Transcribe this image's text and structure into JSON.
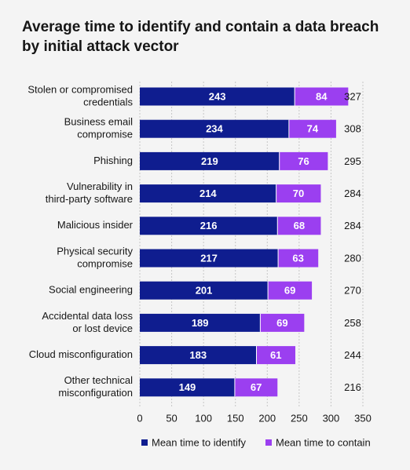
{
  "title": "Average time to identify and contain a data breach by initial attack vector",
  "colors": {
    "identify": "#0f1d8f",
    "contain": "#9b3ff0",
    "background": "#f4f4f4",
    "grid": "#c6c6c6"
  },
  "chart_data": {
    "type": "bar",
    "orientation": "horizontal",
    "stacked": true,
    "categories": [
      [
        "Stolen or compromised",
        "credentials"
      ],
      [
        "Business email",
        "compromise"
      ],
      [
        "Phishing"
      ],
      [
        "Vulnerability in",
        "third-party software"
      ],
      [
        "Malicious insider"
      ],
      [
        "Physical security",
        "compromise"
      ],
      [
        "Social engineering"
      ],
      [
        "Accidental data loss",
        "or lost device"
      ],
      [
        "Cloud misconfiguration"
      ],
      [
        "Other technical",
        "misconfiguration"
      ]
    ],
    "series": [
      {
        "name": "Mean time to identify",
        "values": [
          243,
          234,
          219,
          214,
          216,
          217,
          201,
          189,
          183,
          149
        ]
      },
      {
        "name": "Mean time to contain",
        "values": [
          84,
          74,
          76,
          70,
          68,
          63,
          69,
          69,
          61,
          67
        ]
      }
    ],
    "totals": [
      327,
      308,
      295,
      284,
      284,
      280,
      270,
      258,
      244,
      216
    ],
    "xlim": [
      0,
      350
    ],
    "xticks": [
      0,
      50,
      100,
      150,
      200,
      250,
      300,
      350
    ],
    "grid": true,
    "legend": "bottom"
  }
}
